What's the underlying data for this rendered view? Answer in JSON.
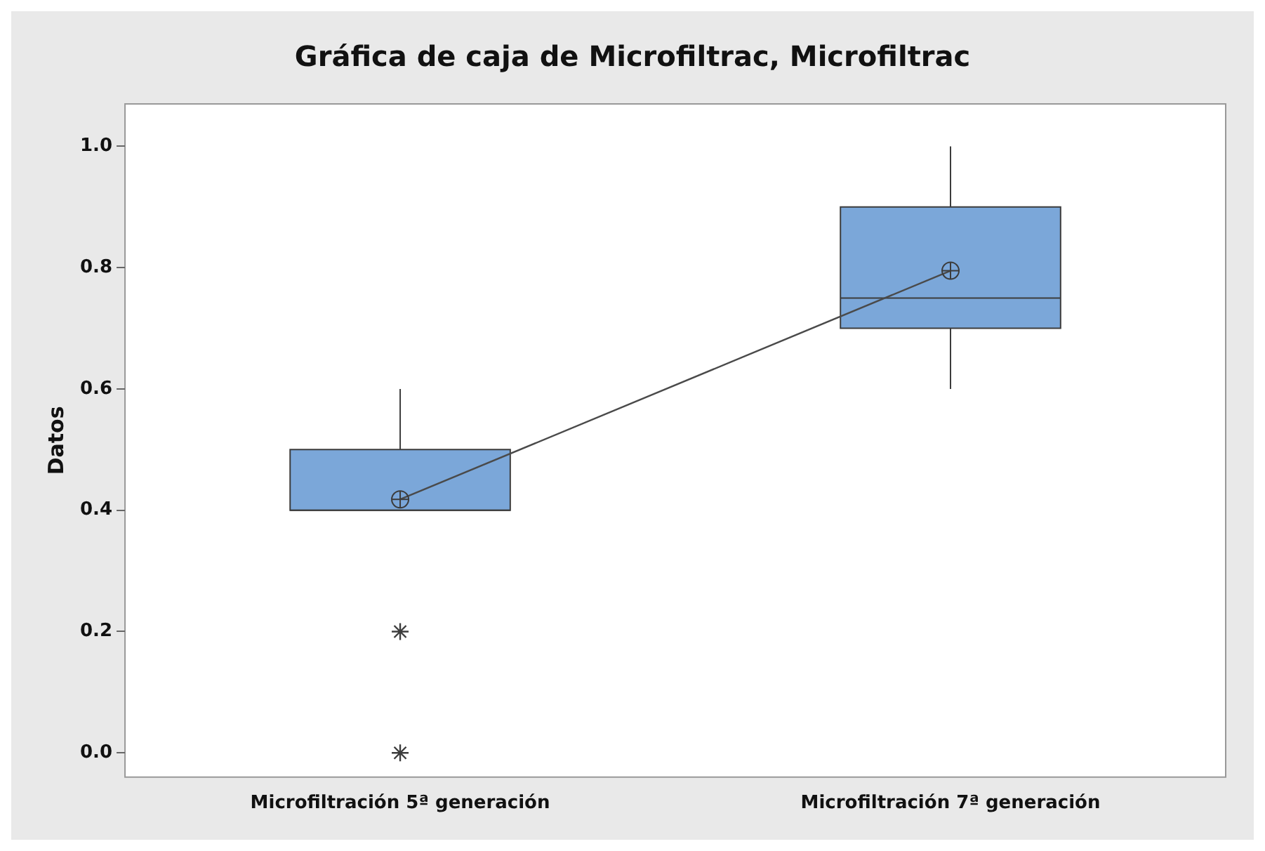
{
  "chart_data": {
    "type": "box",
    "title": "Gráfica de caja de Microfiltrac, Microfiltrac",
    "ylabel": "Datos",
    "categories": [
      "Microfiltración 5ª generación",
      "Microfiltración 7ª generación"
    ],
    "series": [
      {
        "type": "box",
        "color": "#7ba7d9",
        "boxes": [
          {
            "low": 0.4,
            "q1": 0.4,
            "median": 0.4,
            "q3": 0.5,
            "high": 0.6,
            "mean": 0.418,
            "outliers": [
              0.2,
              0.0
            ]
          },
          {
            "low": 0.6,
            "q1": 0.7,
            "median": 0.75,
            "q3": 0.9,
            "high": 1.0,
            "mean": 0.795
          }
        ]
      },
      {
        "type": "line",
        "color": "#4a4a4a",
        "values": [
          0.418,
          0.795
        ]
      }
    ],
    "ylim": [
      -0.04,
      1.07
    ],
    "yticks": [
      {
        "value": 0,
        "label": "0.0"
      },
      {
        "value": 0.2,
        "label": "0.2"
      },
      {
        "value": 0.4,
        "label": "0.4"
      },
      {
        "value": 0.6,
        "label": "0.6"
      },
      {
        "value": 0.8,
        "label": "0.8"
      },
      {
        "value": 1.0,
        "label": "1.0"
      }
    ]
  }
}
